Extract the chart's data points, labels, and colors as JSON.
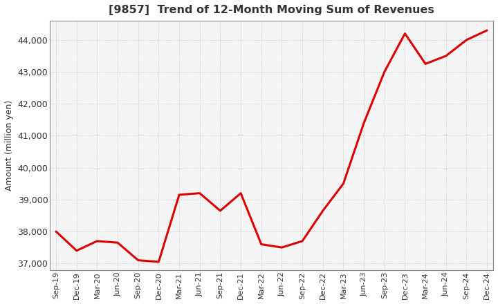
{
  "title": "[9857]  Trend of 12-Month Moving Sum of Revenues",
  "ylabel": "Amount (million yen)",
  "line_color": "#dd0000",
  "line_width": 2.2,
  "bg_color": "#ffffff",
  "plot_bg_color": "#f5f5f5",
  "grid_color": "#bbbbbb",
  "title_color": "#333333",
  "label_color": "#333333",
  "ylim": [
    36800,
    44600
  ],
  "yticks": [
    37000,
    38000,
    39000,
    40000,
    41000,
    42000,
    43000,
    44000
  ],
  "x_labels": [
    "Sep-19",
    "Dec-19",
    "Mar-20",
    "Jun-20",
    "Sep-20",
    "Dec-20",
    "Mar-21",
    "Jun-21",
    "Sep-21",
    "Dec-21",
    "Mar-22",
    "Jun-22",
    "Sep-22",
    "Dec-22",
    "Mar-23",
    "Jun-23",
    "Sep-23",
    "Dec-23",
    "Mar-24",
    "Jun-24",
    "Sep-24",
    "Dec-24"
  ],
  "values": [
    38000,
    37400,
    37700,
    37650,
    37100,
    37050,
    39150,
    39200,
    38650,
    39200,
    37600,
    37500,
    37700,
    38650,
    39500,
    41400,
    43000,
    44200,
    43250,
    43500,
    44000,
    44300
  ]
}
